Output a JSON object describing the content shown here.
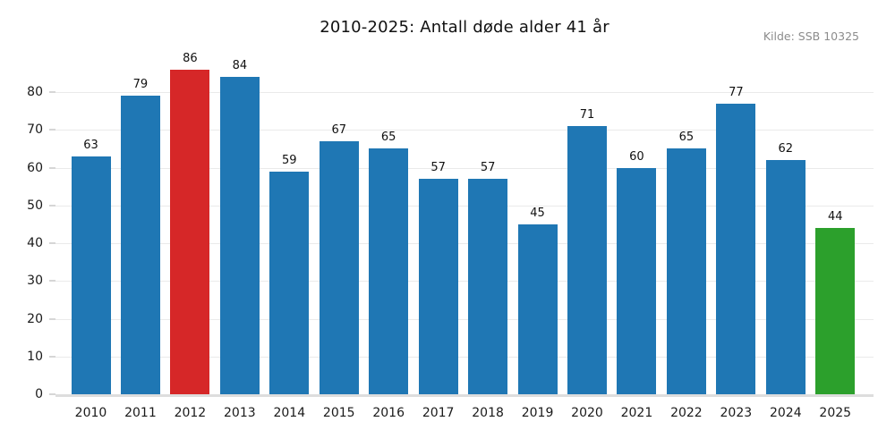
{
  "chart_data": {
    "type": "bar",
    "title": "2010-2025: Antall døde alder 41 år",
    "source_note": "Kilde: SSB 10325",
    "xlabel": "",
    "ylabel": "",
    "categories": [
      "2010",
      "2011",
      "2012",
      "2013",
      "2014",
      "2015",
      "2016",
      "2017",
      "2018",
      "2019",
      "2020",
      "2021",
      "2022",
      "2023",
      "2024",
      "2025"
    ],
    "values": [
      63,
      79,
      86,
      84,
      59,
      67,
      65,
      57,
      57,
      45,
      71,
      60,
      65,
      77,
      62,
      44
    ],
    "bar_colors": [
      "#1f77b4",
      "#1f77b4",
      "#d62728",
      "#1f77b4",
      "#1f77b4",
      "#1f77b4",
      "#1f77b4",
      "#1f77b4",
      "#1f77b4",
      "#1f77b4",
      "#1f77b4",
      "#1f77b4",
      "#1f77b4",
      "#1f77b4",
      "#1f77b4",
      "#2ca02c"
    ],
    "palette": {
      "default_bar": "#1f77b4",
      "highlight_max_2012": "#d62728",
      "highlight_latest_2025": "#2ca02c",
      "gridline": "#eaeaea",
      "baseline": "#dddddd",
      "source_text": "#8c8c8c",
      "tick_text": "#1a1a1a"
    },
    "yticks": [
      0,
      10,
      20,
      30,
      40,
      50,
      60,
      70,
      80
    ],
    "ylim": [
      0,
      88
    ],
    "grid": "horizontal-only",
    "legend": "none",
    "value_labels_shown": true
  }
}
